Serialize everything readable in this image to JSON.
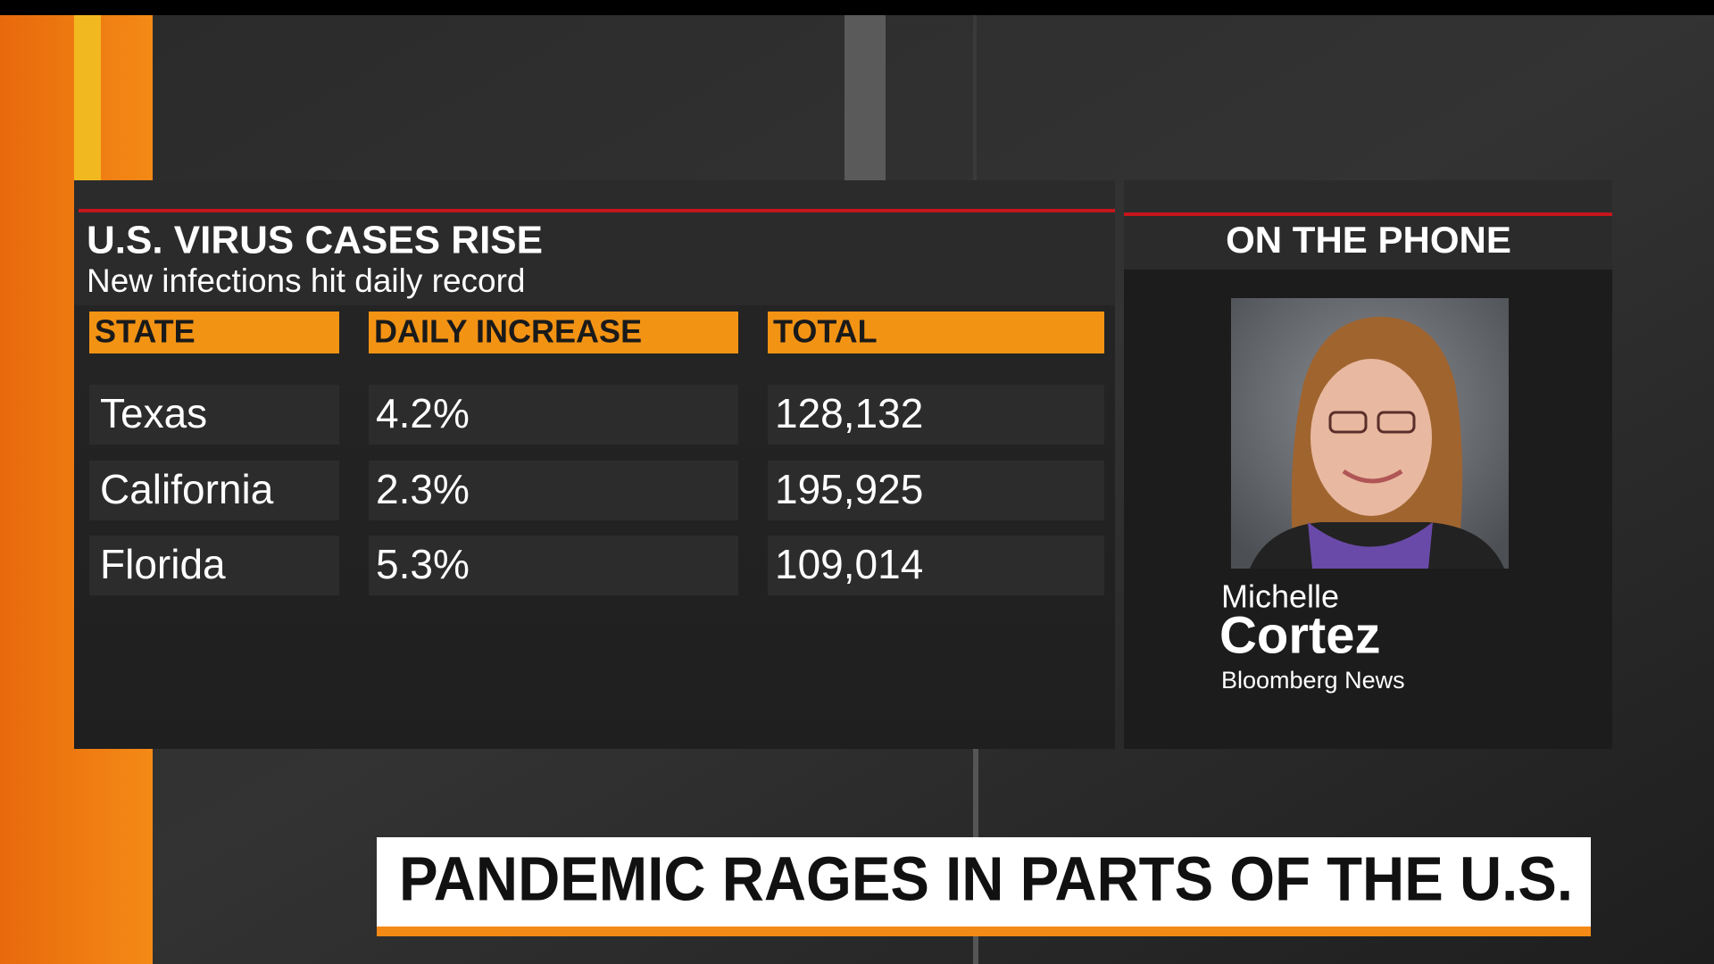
{
  "table_panel": {
    "title": "U.S. VIRUS CASES RISE",
    "subtitle": "New infections hit daily record",
    "columns": [
      "STATE",
      "DAILY INCREASE",
      "TOTAL"
    ],
    "rows": [
      [
        "Texas",
        "4.2%",
        "128,132"
      ],
      [
        "California",
        "2.3%",
        "195,925"
      ],
      [
        "Florida",
        "5.3%",
        "109,014"
      ]
    ]
  },
  "phone_panel": {
    "title": "ON THE PHONE",
    "first_name": "Michelle",
    "last_name": "Cortez",
    "affiliation": "Bloomberg News"
  },
  "headline": "PANDEMIC RAGES IN PARTS OF THE U.S."
}
